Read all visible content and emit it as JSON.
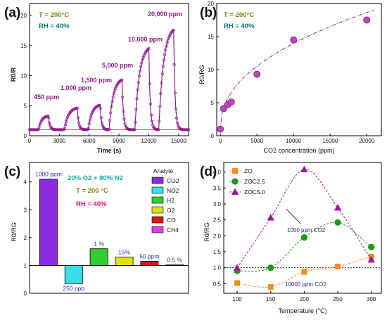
{
  "colors": {
    "purple": "#8b1a8b",
    "purple_fill": "#b34bb3",
    "baseline_red": "#cc3333"
  },
  "panel_a": {
    "label": "(a)",
    "t_text": "T = 200°C",
    "rh_text": "RH = 40%",
    "ylabel": "R0/R",
    "xlabel": "Time (s)",
    "xticks": [
      "0",
      "3000",
      "6000",
      "9000",
      "12000",
      "15000"
    ],
    "yticks": [
      "0",
      "5",
      "10",
      "15",
      "20"
    ],
    "concs": [
      "450 ppm",
      "1,000 ppm",
      "1,500 ppm",
      "5,000 ppm",
      "10,000 ppm",
      "20,000 ppm"
    ]
  },
  "panel_b": {
    "label": "(b)",
    "t_text": "T = 200°C",
    "rh_text": "RH = 40%",
    "ylabel": "R0/RG",
    "xlabel": "CO2 concentration (ppm)",
    "xticks": [
      "0",
      "5000",
      "10000",
      "15000",
      "20000"
    ],
    "yticks": [
      "0",
      "5",
      "10",
      "15",
      "20"
    ]
  },
  "panel_c": {
    "label": "(c)",
    "gas_text": "20% O2 + 80% N2",
    "t_text": "T = 200 °C",
    "rh_text": "RH = 40%",
    "ylabel": "R0/RG",
    "yticks": [
      "0",
      "1",
      "2",
      "3",
      "4"
    ],
    "legend_title": "Analyte",
    "legend": [
      "CO2",
      "NO2",
      "H2",
      "O2",
      "CO",
      "CH4"
    ],
    "bar_labels": [
      "1000 ppm",
      "250 ppb",
      "1 %",
      "15%",
      "50 ppm",
      "0.5 %"
    ]
  },
  "panel_d": {
    "label": "(d)",
    "ylabel": "R0/RG",
    "xlabel": "Temperature (°C)",
    "xticks": [
      "100",
      "150",
      "200",
      "250",
      "300"
    ],
    "yticks": [
      "0.5",
      "1.0",
      "1.5",
      "2.0",
      "2.5",
      "3.0",
      "3.5",
      "4.0"
    ],
    "legend": [
      "ZO",
      "ZOC2.5",
      "ZOC5.0"
    ],
    "ann_1050": "1050 ppm CO2",
    "ann_10000": "10000 ppm CO2"
  },
  "chart_data": [
    {
      "panel": "a",
      "type": "line",
      "xlabel": "Time (s)",
      "ylabel": "R0/R",
      "xlim": [
        0,
        16000
      ],
      "ylim": [
        0,
        22
      ],
      "pulses": [
        {
          "label": "450 ppm",
          "start": 900,
          "end": 1900,
          "peak": 3.3
        },
        {
          "label": "1,000 ppm",
          "start": 3500,
          "end": 4800,
          "peak": 4.6
        },
        {
          "label": "1,500 ppm",
          "start": 5900,
          "end": 7100,
          "peak": 5.1
        },
        {
          "label": "5,000 ppm",
          "start": 8000,
          "end": 9300,
          "peak": 9.3
        },
        {
          "label": "10,000 ppm",
          "start": 10600,
          "end": 12000,
          "peak": 14.5
        },
        {
          "label": "20,000 ppm",
          "start": 13000,
          "end": 14500,
          "peak": 17.6
        }
      ],
      "baseline": 1.0,
      "reference_line": 1.0
    },
    {
      "panel": "b",
      "type": "scatter",
      "xlabel": "CO2 concentration (ppm)",
      "ylabel": "R0/RG",
      "xlim": [
        -500,
        22000
      ],
      "ylim": [
        0,
        20
      ],
      "x": [
        0,
        450,
        1000,
        1500,
        5000,
        10000,
        20000
      ],
      "y": [
        1.0,
        4.1,
        4.7,
        5.1,
        9.3,
        14.5,
        17.5
      ],
      "fit": true
    },
    {
      "panel": "c",
      "type": "bar",
      "ylabel": "R0/RG",
      "ylim": [
        0,
        4.7
      ],
      "baseline": 1,
      "categories": [
        "CO2",
        "NO2",
        "H2",
        "O2",
        "CO",
        "CH4"
      ],
      "values": [
        4.1,
        0.35,
        1.6,
        1.3,
        1.15,
        1.02
      ],
      "labels": [
        "1000 ppm",
        "250 ppb",
        "1 %",
        "15%",
        "50 ppm",
        "0.5 %"
      ],
      "colors": [
        "#8a2be2",
        "#37dfe8",
        "#33cc33",
        "#e0e010",
        "#dd1111",
        "#e040e0"
      ]
    },
    {
      "panel": "d",
      "type": "line",
      "xlabel": "Temperature (°C)",
      "ylabel": "R0/RG",
      "xlim": [
        80,
        315
      ],
      "ylim": [
        0.2,
        4.3
      ],
      "x": [
        100,
        150,
        200,
        250,
        300
      ],
      "series": [
        {
          "name": "ZO",
          "values": [
            0.52,
            0.4,
            0.87,
            1.04,
            1.35
          ],
          "color": "#f08c1e",
          "marker": "square"
        },
        {
          "name": "ZOC2.5",
          "values": [
            0.9,
            1.0,
            1.95,
            2.42,
            1.65
          ],
          "color": "#1a9a1a",
          "marker": "circle"
        },
        {
          "name": "ZOC5.0",
          "values": [
            1.0,
            2.57,
            4.08,
            2.88,
            1.25
          ],
          "color": "#9a1a9a",
          "marker": "triangle"
        }
      ],
      "reference_line": 1.0
    }
  ]
}
